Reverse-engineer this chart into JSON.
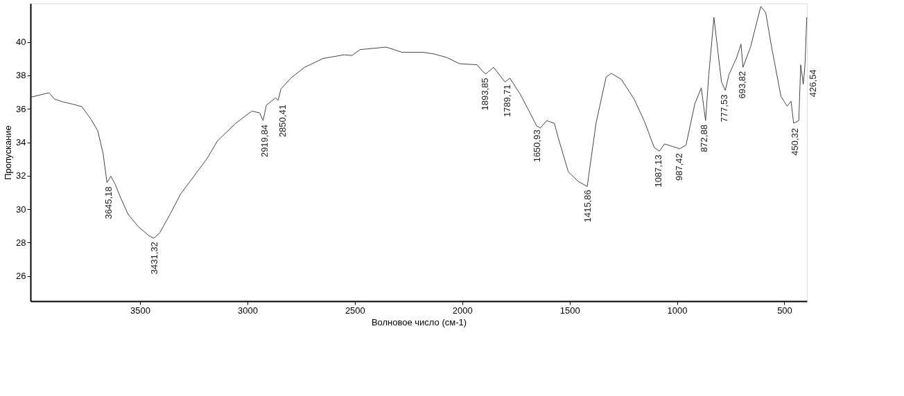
{
  "chart_data": {
    "type": "line",
    "xlabel": "Волновое число (см-1)",
    "ylabel": "Пропускание",
    "xlim": [
      4010,
      395
    ],
    "ylim": [
      24.5,
      42.3
    ],
    "xticks": [
      3500,
      3000,
      2500,
      2000,
      1500,
      1000,
      500
    ],
    "yticks": [
      26,
      28,
      30,
      32,
      34,
      36,
      38,
      40
    ],
    "grid": false,
    "marker": "none",
    "line_style": "solid",
    "x": [
      4010,
      3924,
      3899,
      3863,
      3814,
      3771,
      3728,
      3697,
      3672,
      3654,
      3636,
      3617,
      3593,
      3556,
      3507,
      3458,
      3436,
      3409,
      3360,
      3311,
      3249,
      3188,
      3139,
      3053,
      2979,
      2943,
      2927,
      2912,
      2869,
      2857,
      2844,
      2795,
      2734,
      2648,
      2550,
      2513,
      2476,
      2354,
      2280,
      2182,
      2131,
      2072,
      2013,
      1931,
      1901,
      1890,
      1854,
      1801,
      1778,
      1730,
      1683,
      1654,
      1636,
      1607,
      1571,
      1553,
      1506,
      1459,
      1418,
      1377,
      1330,
      1306,
      1259,
      1200,
      1153,
      1106,
      1082,
      1058,
      1023,
      988,
      958,
      917,
      887,
      867,
      852,
      828,
      793,
      775,
      758,
      722,
      702,
      693,
      657,
      610,
      587,
      563,
      516,
      487,
      469,
      457,
      433,
      424,
      412,
      404,
      396
    ],
    "series": [
      {
        "color": "#444444",
        "values": [
          36.69,
          36.96,
          36.59,
          36.43,
          36.28,
          36.13,
          35.37,
          34.69,
          33.33,
          31.59,
          31.97,
          31.52,
          30.76,
          29.7,
          28.94,
          28.41,
          28.26,
          28.57,
          29.7,
          30.91,
          31.97,
          33.03,
          34.09,
          35.15,
          35.87,
          35.75,
          35.3,
          36.21,
          36.66,
          36.51,
          37.19,
          37.87,
          38.48,
          39.01,
          39.23,
          39.19,
          39.54,
          39.69,
          39.38,
          39.38,
          39.28,
          39.07,
          38.7,
          38.63,
          38.19,
          38.09,
          38.48,
          37.61,
          37.83,
          36.88,
          35.72,
          34.99,
          34.85,
          35.29,
          35.14,
          34.27,
          32.23,
          31.65,
          31.36,
          35.14,
          37.9,
          38.12,
          37.76,
          36.59,
          35.29,
          33.69,
          33.47,
          33.9,
          33.76,
          33.61,
          33.83,
          36.3,
          37.25,
          35.29,
          38.05,
          41.46,
          37.61,
          37.1,
          38.05,
          39.07,
          39.87,
          38.48,
          39.72,
          42.12,
          41.76,
          39.94,
          36.74,
          36.16,
          36.45,
          35.14,
          35.29,
          38.63,
          37.47,
          38.63,
          41.46
        ]
      }
    ],
    "annotations": [
      {
        "text": "3645,18",
        "x": 3645.18,
        "y": 31.6
      },
      {
        "text": "3431,32",
        "x": 3431.32,
        "y": 28.3
      },
      {
        "text": "2919,84",
        "x": 2919.84,
        "y": 35.3
      },
      {
        "text": "2850,41",
        "x": 2850.41,
        "y": 36.5
      },
      {
        "text": "1893,85",
        "x": 1893.85,
        "y": 38.1
      },
      {
        "text": "1789,71",
        "x": 1789.71,
        "y": 37.7
      },
      {
        "text": "1650,93",
        "x": 1650.93,
        "y": 35.0
      },
      {
        "text": "1415,86",
        "x": 1415.86,
        "y": 31.4
      },
      {
        "text": "1087,13",
        "x": 1087.13,
        "y": 33.5
      },
      {
        "text": "987,42",
        "x": 987.42,
        "y": 33.6
      },
      {
        "text": "872,88",
        "x": 872.88,
        "y": 35.3
      },
      {
        "text": "777,53",
        "x": 777.53,
        "y": 37.1
      },
      {
        "text": "693,82",
        "x": 693.82,
        "y": 38.5
      },
      {
        "text": "450,32",
        "x": 450.32,
        "y": 35.1
      },
      {
        "text": "426,54",
        "x": 426.54,
        "y": 38.6
      }
    ]
  }
}
